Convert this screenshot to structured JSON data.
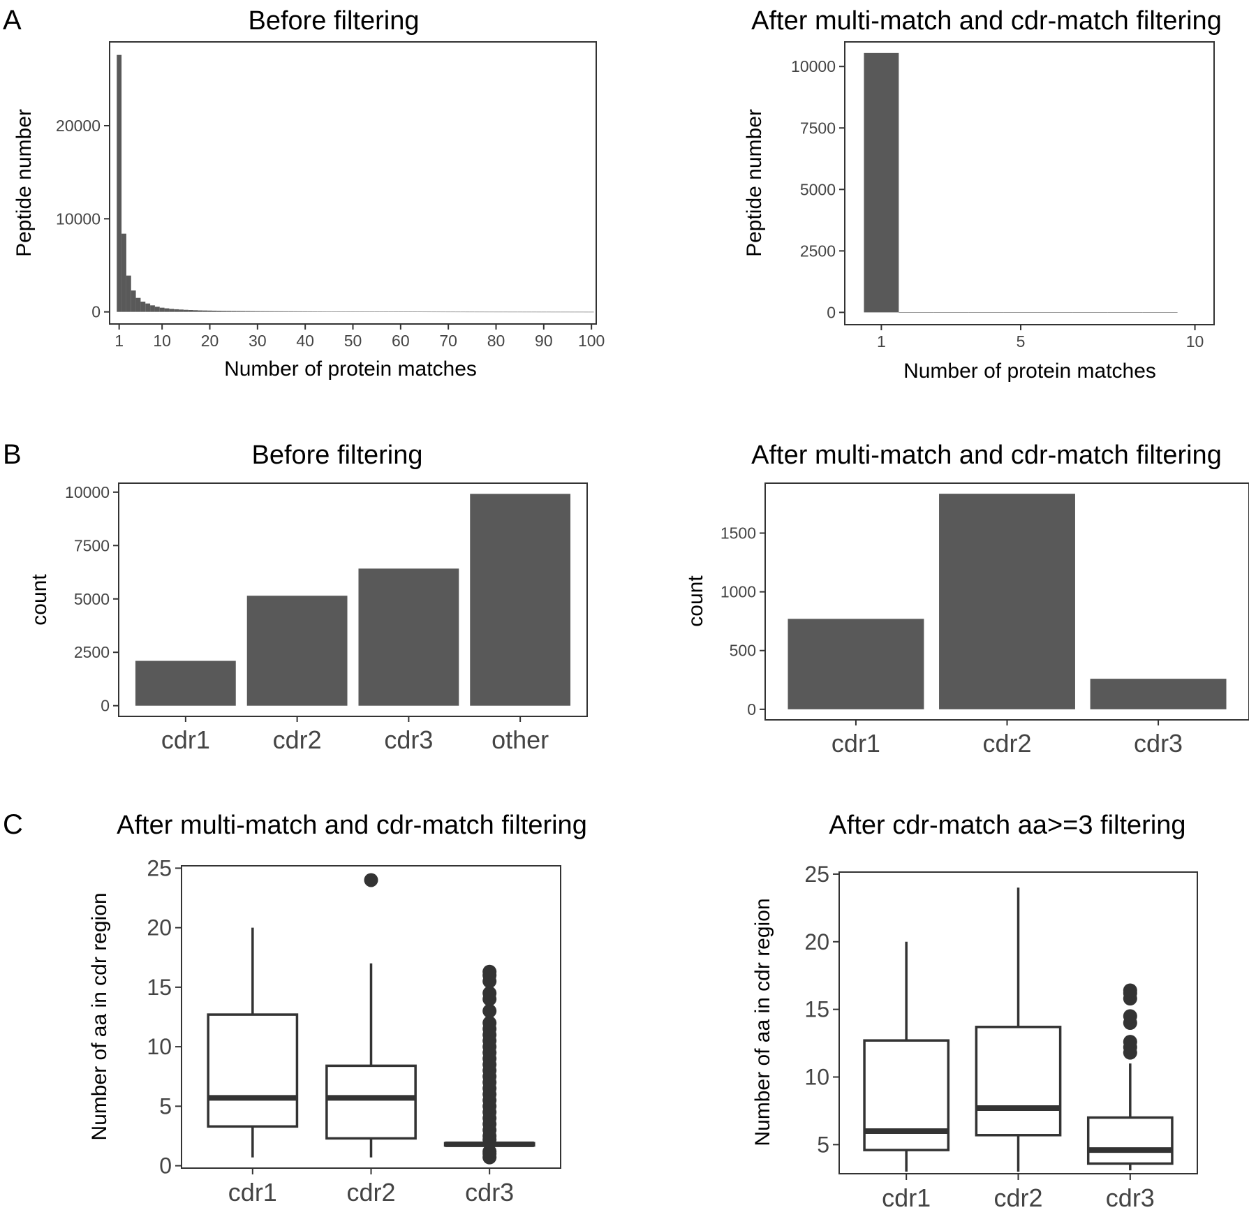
{
  "panel_labels": [
    "A",
    "B",
    "C"
  ],
  "chart_data": [
    {
      "id": "A1",
      "type": "bar",
      "panel": "A",
      "title": "Before filtering",
      "xlabel": "Number of protein matches",
      "ylabel": "Peptide number",
      "xlim": [
        -1,
        101
      ],
      "ylim": [
        -1300,
        29000
      ],
      "xticks": [
        1,
        10,
        20,
        30,
        40,
        50,
        60,
        70,
        80,
        90,
        100
      ],
      "xtick_labels": [
        "1",
        "10",
        "20",
        "30",
        "40",
        "50",
        "60",
        "70",
        "80",
        "90",
        "100"
      ],
      "yticks": [
        0,
        10000,
        20000
      ],
      "ytick_labels": [
        "0",
        "10000",
        "20000"
      ],
      "bin_width": 1,
      "x": [
        1,
        2,
        3,
        4,
        5,
        6,
        7,
        8,
        9,
        10,
        11,
        12,
        13,
        14,
        15,
        16,
        17,
        18,
        19,
        20,
        21,
        22,
        23,
        24,
        25,
        26,
        27,
        28,
        29,
        30,
        31,
        32,
        33,
        34,
        35,
        36,
        37,
        38,
        39,
        40,
        41,
        42,
        43,
        44,
        45,
        46,
        47,
        48,
        49,
        50,
        51,
        52,
        53,
        54,
        55,
        56,
        57,
        58,
        59,
        60,
        61,
        62,
        63,
        64,
        65,
        66,
        67,
        68,
        69,
        70,
        71,
        72,
        73,
        74,
        75,
        76,
        77,
        78,
        79,
        80,
        81,
        82,
        83,
        84,
        85,
        86,
        87,
        88,
        89,
        90,
        91,
        92,
        93,
        94,
        95,
        96,
        97,
        98,
        99,
        100
      ],
      "values": [
        27600,
        8400,
        3900,
        2300,
        1500,
        1100,
        900,
        700,
        550,
        450,
        380,
        320,
        280,
        250,
        220,
        200,
        180,
        160,
        150,
        140,
        130,
        120,
        110,
        105,
        100,
        95,
        90,
        85,
        80,
        75,
        72,
        70,
        68,
        66,
        64,
        62,
        60,
        58,
        56,
        54,
        52,
        50,
        48,
        46,
        44,
        42,
        40,
        38,
        36,
        34,
        33,
        32,
        31,
        30,
        29,
        28,
        27,
        26,
        25,
        24,
        23,
        22,
        21,
        20,
        19,
        18,
        17,
        16,
        15,
        14,
        14,
        13,
        13,
        12,
        12,
        11,
        11,
        10,
        10,
        9,
        9,
        9,
        8,
        8,
        8,
        7,
        7,
        7,
        6,
        6,
        6,
        5,
        5,
        5,
        5,
        4,
        4,
        4,
        3,
        3
      ]
    },
    {
      "id": "A2",
      "type": "bar",
      "panel": "A",
      "title": "After multi-match and cdr-match filtering",
      "xlabel": "Number of protein matches",
      "ylabel": "Peptide number",
      "xlim": [
        -0.05,
        10.55
      ],
      "ylim": [
        -500,
        11000
      ],
      "xticks": [
        1,
        5,
        10
      ],
      "xtick_labels": [
        "1",
        "5",
        "10"
      ],
      "yticks": [
        0,
        2500,
        5000,
        7500,
        10000
      ],
      "ytick_labels": [
        "0",
        "2500",
        "5000",
        "7500",
        "10000"
      ],
      "bin_width": 1,
      "x": [
        1,
        2,
        3,
        4,
        5,
        6,
        7,
        8,
        9
      ],
      "values": [
        10550,
        0,
        0,
        0,
        0,
        0,
        0,
        0,
        0
      ]
    },
    {
      "id": "B1",
      "type": "bar",
      "panel": "B",
      "title": "Before filtering",
      "xlabel": "",
      "ylabel": "count",
      "categories": [
        "cdr1",
        "cdr2",
        "cdr3",
        "other"
      ],
      "values": [
        2100,
        5150,
        6420,
        9920
      ],
      "ylim": [
        -500,
        10420
      ],
      "yticks": [
        0,
        2500,
        5000,
        7500,
        10000
      ],
      "ytick_labels": [
        "0",
        "2500",
        "5000",
        "7500",
        "10000"
      ]
    },
    {
      "id": "B2",
      "type": "bar",
      "panel": "B",
      "title": "After multi-match and cdr-match filtering",
      "xlabel": "",
      "ylabel": "count",
      "categories": [
        "cdr1",
        "cdr2",
        "cdr3"
      ],
      "values": [
        770,
        1835,
        260
      ],
      "ylim": [
        -90,
        1925
      ],
      "yticks": [
        0,
        500,
        1000,
        1500
      ],
      "ytick_labels": [
        "0",
        "500",
        "1000",
        "1500"
      ]
    },
    {
      "id": "C1",
      "type": "box",
      "panel": "C",
      "title": "After multi-match and cdr-match filtering",
      "xlabel": "",
      "ylabel": "Number of aa in cdr region",
      "categories": [
        "cdr1",
        "cdr2",
        "cdr3"
      ],
      "ylim": [
        -0.2,
        25.2
      ],
      "yticks": [
        0,
        5,
        10,
        15,
        20,
        25
      ],
      "ytick_labels": [
        "0",
        "5",
        "10",
        "15",
        "20",
        "25"
      ],
      "boxes": [
        {
          "low": 0.7,
          "q1": 3.3,
          "median": 5.7,
          "q3": 12.7,
          "high": 20,
          "outliers": []
        },
        {
          "low": 0.7,
          "q1": 2.3,
          "median": 5.7,
          "q3": 8.4,
          "high": 17,
          "outliers": [
            24
          ]
        },
        {
          "low": 1.6,
          "q1": 1.7,
          "median": 1.8,
          "q3": 1.9,
          "high": 2.0,
          "outliers": [
            0.7,
            1.0,
            1.2,
            2.2,
            2.5,
            3,
            3.5,
            4,
            4.5,
            5,
            5.5,
            6,
            6.5,
            7,
            7.5,
            8,
            8.5,
            9,
            9.5,
            10,
            10.5,
            11,
            11.5,
            12,
            13,
            14,
            14.5,
            15.5,
            16,
            16.3
          ]
        }
      ]
    },
    {
      "id": "C2",
      "type": "box",
      "panel": "C",
      "title": "After cdr-match aa>=3 filtering",
      "xlabel": "",
      "ylabel": "Number of aa in cdr region",
      "categories": [
        "cdr1",
        "cdr2",
        "cdr3"
      ],
      "ylim": [
        2.85,
        25.15
      ],
      "yticks": [
        5,
        10,
        15,
        20,
        25
      ],
      "ytick_labels": [
        "5",
        "10",
        "15",
        "20",
        "25"
      ],
      "boxes": [
        {
          "low": 3,
          "q1": 4.6,
          "median": 6.0,
          "q3": 12.7,
          "high": 20,
          "outliers": []
        },
        {
          "low": 3,
          "q1": 5.7,
          "median": 7.7,
          "q3": 13.7,
          "high": 24,
          "outliers": []
        },
        {
          "low": 3.1,
          "q1": 3.6,
          "median": 4.6,
          "q3": 7.0,
          "high": 11,
          "outliers": [
            11.8,
            12.2,
            12.6,
            14.0,
            14.5,
            15.8,
            16.2,
            16.4
          ]
        }
      ]
    }
  ]
}
